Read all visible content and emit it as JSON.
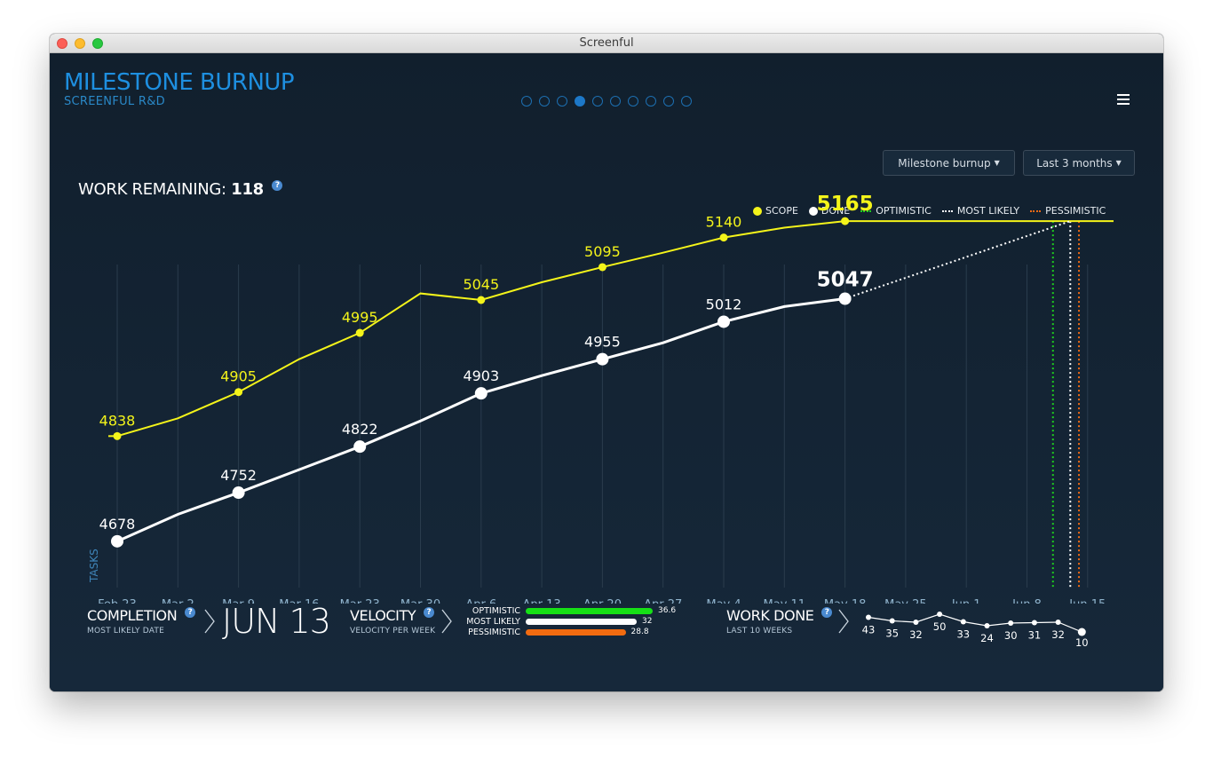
{
  "window": {
    "title": "Screenful"
  },
  "header": {
    "title": "MILESTONE BURNUP",
    "subtitle": "SCREENFUL R&D",
    "pager": {
      "count": 10,
      "active": 3
    }
  },
  "controls": {
    "report_select": "Milestone burnup",
    "range_select": "Last 3 months"
  },
  "summary": {
    "work_remaining_label": "WORK REMAINING:",
    "work_remaining_value": "118",
    "help_glyph": "?"
  },
  "legend": {
    "items": [
      {
        "label": "SCOPE",
        "kind": "dot",
        "color": "#f4f41a"
      },
      {
        "label": "DONE",
        "kind": "dot",
        "color": "#ffffff"
      },
      {
        "label": "OPTIMISTIC",
        "kind": "dash",
        "color": "#1ecf1e"
      },
      {
        "label": "MOST LIKELY",
        "kind": "dash",
        "color": "#ffffff"
      },
      {
        "label": "PESSIMISTIC",
        "kind": "dash",
        "color": "#f06a14"
      }
    ]
  },
  "chart_data": {
    "type": "line",
    "ylabel": "TASKS",
    "x": [
      "Feb 23",
      "Mar 2",
      "Mar 9",
      "Mar 16",
      "Mar 23",
      "Mar 30",
      "Apr 6",
      "Apr 13",
      "Apr 20",
      "Apr 27",
      "May 4",
      "May 11",
      "May 18",
      "May 25",
      "Jun 1",
      "Jun 8",
      "Jun 15"
    ],
    "series": [
      {
        "name": "SCOPE",
        "color": "#f4f41a",
        "values": [
          4838,
          4865,
          4905,
          4955,
          4995,
          5055,
          5045,
          5072,
          5095,
          5117,
          5140,
          5155,
          5165,
          null,
          null,
          null,
          null
        ],
        "labeled": {
          "Feb 23": "4838",
          "Mar 9": "4905",
          "Mar 23": "4995",
          "Apr 6": "5045",
          "Apr 20": "5095",
          "May 4": "5140",
          "May 18": "5165"
        }
      },
      {
        "name": "DONE",
        "color": "#ffffff",
        "values": [
          4678,
          4719,
          4752,
          4787,
          4822,
          4861,
          4903,
          4930,
          4955,
          4980,
          5012,
          5035,
          5047,
          null,
          null,
          null,
          null
        ],
        "labeled": {
          "Feb 23": "4678",
          "Mar 9": "4752",
          "Mar 23": "4822",
          "Apr 6": "4903",
          "Apr 20": "4955",
          "May 4": "5012",
          "May 18": "5047"
        }
      }
    ],
    "scope_final": 5165,
    "projections": [
      {
        "name": "OPTIMISTIC",
        "color": "#1ecf1e",
        "date": "Jun 11"
      },
      {
        "name": "MOST LIKELY",
        "color": "#ffffff",
        "date": "Jun 13"
      },
      {
        "name": "PESSIMISTIC",
        "color": "#f06a14",
        "date": "Jun 14"
      }
    ],
    "ylim": [
      4640,
      5180
    ],
    "grid": true
  },
  "completion": {
    "title": "COMPLETION",
    "subtitle": "MOST LIKELY DATE",
    "date": "JUN 13"
  },
  "velocity": {
    "title": "VELOCITY",
    "subtitle": "VELOCITY PER WEEK",
    "rows": [
      {
        "label": "OPTIMISTIC",
        "value": 36.6,
        "display": "36.6",
        "color": "#16e016"
      },
      {
        "label": "MOST LIKELY",
        "value": 32,
        "display": "32",
        "color": "#ffffff"
      },
      {
        "label": "PESSIMISTIC",
        "value": 28.8,
        "display": "28.8",
        "color": "#f26b10"
      }
    ],
    "max": 36.6
  },
  "work_done": {
    "title": "WORK DONE",
    "subtitle": "LAST 10 WEEKS",
    "values": [
      43,
      35,
      32,
      50,
      33,
      24,
      30,
      31,
      32,
      10
    ]
  }
}
